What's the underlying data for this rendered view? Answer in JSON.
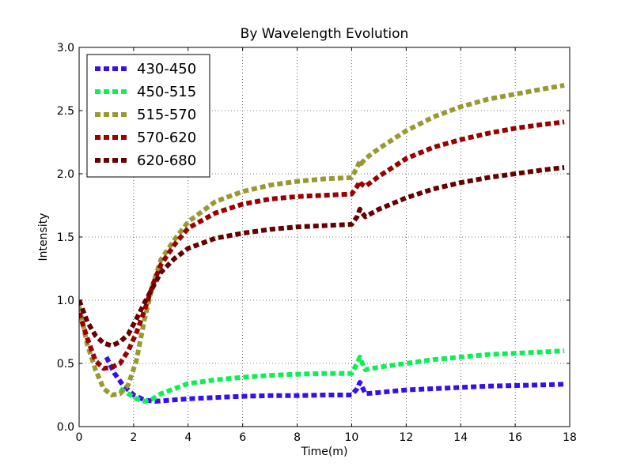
{
  "chart_data": {
    "type": "line",
    "title": "By Wavelength Evolution",
    "xlabel": "Time(m)",
    "ylabel": "Intensity",
    "xlim": [
      0,
      18
    ],
    "ylim": [
      0,
      3.0
    ],
    "xticks": [
      0,
      2,
      4,
      6,
      8,
      10,
      12,
      14,
      16,
      18
    ],
    "yticks": [
      0.0,
      0.5,
      1.0,
      1.5,
      2.0,
      2.5,
      3.0
    ],
    "xtick_labels": [
      "0",
      "2",
      "4",
      "6",
      "8",
      "10",
      "12",
      "14",
      "16",
      "18"
    ],
    "ytick_labels": [
      "0.0",
      "0.5",
      "1.0",
      "1.5",
      "2.0",
      "2.5",
      "3.0"
    ],
    "grid": true,
    "legend_position": "top-left",
    "series": [
      {
        "name": "430-450",
        "color": "#3311ee",
        "x": [
          1.0,
          1.3,
          1.6,
          2.0,
          2.4,
          2.8,
          4,
          5,
          6,
          7,
          8,
          9,
          10,
          10.2,
          10.3,
          10.35,
          10.5,
          11,
          12,
          13,
          14,
          15,
          16,
          17,
          17.8
        ],
        "y": [
          0.55,
          0.42,
          0.33,
          0.25,
          0.21,
          0.2,
          0.22,
          0.23,
          0.24,
          0.245,
          0.245,
          0.25,
          0.25,
          0.3,
          0.35,
          0.33,
          0.26,
          0.27,
          0.29,
          0.3,
          0.31,
          0.32,
          0.325,
          0.33,
          0.335
        ]
      },
      {
        "name": "450-515",
        "color": "#11ee55",
        "x": [
          1.5,
          1.8,
          2.1,
          2.4,
          2.7,
          3,
          3.5,
          4,
          5,
          6,
          7,
          8,
          9,
          10,
          10.2,
          10.3,
          10.35,
          10.5,
          11,
          12,
          13,
          14,
          15,
          16,
          17,
          17.8
        ],
        "y": [
          0.3,
          0.26,
          0.22,
          0.2,
          0.22,
          0.26,
          0.3,
          0.34,
          0.37,
          0.39,
          0.405,
          0.415,
          0.42,
          0.42,
          0.5,
          0.55,
          0.52,
          0.45,
          0.47,
          0.5,
          0.53,
          0.55,
          0.57,
          0.58,
          0.59,
          0.6
        ]
      },
      {
        "name": "515-570",
        "color": "#999933",
        "x": [
          0,
          0.3,
          0.6,
          0.9,
          1.2,
          1.5,
          1.8,
          2.1,
          2.4,
          2.7,
          3,
          3.5,
          4,
          5,
          6,
          7,
          8,
          9,
          10,
          10.2,
          10.3,
          10.35,
          10.5,
          11,
          12,
          13,
          14,
          15,
          16,
          17,
          17.8
        ],
        "y": [
          0.95,
          0.65,
          0.45,
          0.3,
          0.25,
          0.26,
          0.33,
          0.52,
          0.85,
          1.12,
          1.32,
          1.48,
          1.62,
          1.78,
          1.86,
          1.91,
          1.94,
          1.96,
          1.97,
          2.05,
          2.1,
          2.08,
          2.12,
          2.2,
          2.34,
          2.45,
          2.53,
          2.59,
          2.63,
          2.67,
          2.7
        ]
      },
      {
        "name": "570-620",
        "color": "#990000",
        "x": [
          0,
          0.3,
          0.6,
          0.9,
          1.2,
          1.5,
          1.8,
          2.1,
          2.4,
          2.7,
          3,
          3.5,
          4,
          5,
          6,
          7,
          8,
          9,
          10,
          10.2,
          10.3,
          10.35,
          10.5,
          11,
          12,
          13,
          14,
          15,
          16,
          17,
          17.8
        ],
        "y": [
          0.9,
          0.7,
          0.52,
          0.46,
          0.47,
          0.5,
          0.6,
          0.74,
          0.92,
          1.12,
          1.28,
          1.44,
          1.57,
          1.69,
          1.76,
          1.8,
          1.82,
          1.83,
          1.84,
          1.9,
          1.94,
          1.92,
          1.9,
          1.98,
          2.12,
          2.21,
          2.27,
          2.32,
          2.36,
          2.39,
          2.41
        ]
      },
      {
        "name": "620-680",
        "color": "#660000",
        "x": [
          0,
          0.3,
          0.6,
          0.9,
          1.2,
          1.5,
          1.8,
          2.1,
          2.4,
          2.7,
          3,
          3.5,
          4,
          5,
          6,
          7,
          8,
          9,
          10,
          10.2,
          10.3,
          10.35,
          10.5,
          11,
          12,
          13,
          14,
          15,
          16,
          17,
          17.8
        ],
        "y": [
          1.0,
          0.83,
          0.72,
          0.66,
          0.64,
          0.67,
          0.73,
          0.85,
          0.98,
          1.1,
          1.22,
          1.33,
          1.41,
          1.49,
          1.53,
          1.56,
          1.58,
          1.59,
          1.6,
          1.66,
          1.72,
          1.7,
          1.66,
          1.72,
          1.81,
          1.88,
          1.93,
          1.97,
          2.0,
          2.03,
          2.05
        ]
      }
    ]
  }
}
